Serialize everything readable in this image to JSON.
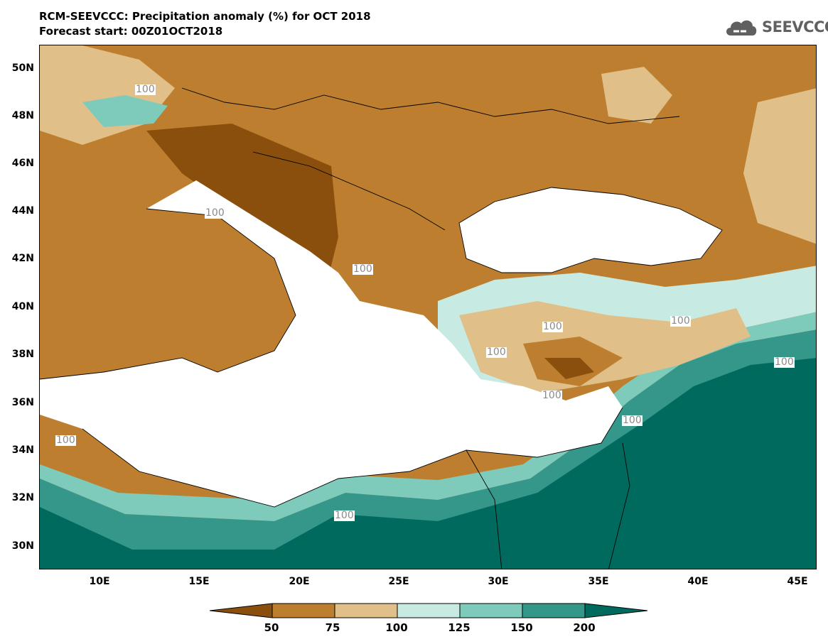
{
  "header": {
    "title": "RCM-SEEVCCC: Precipitation anomaly (%) for OCT 2018",
    "subtitle": "Forecast start: 00Z01OCT2018",
    "logo_text": "SEEVCCC"
  },
  "map": {
    "lat_labels": [
      "50N",
      "48N",
      "46N",
      "44N",
      "42N",
      "40N",
      "38N",
      "36N",
      "34N",
      "32N",
      "30N"
    ],
    "lon_labels": [
      "10E",
      "15E",
      "20E",
      "25E",
      "30E",
      "35E",
      "40E",
      "45E"
    ],
    "lat_range": [
      29,
      51
    ],
    "lon_range": [
      7,
      46
    ],
    "contour_labels": [
      "100",
      "100",
      "100",
      "100",
      "100",
      "100",
      "100",
      "100",
      "100",
      "100",
      "100"
    ]
  },
  "colorbar": {
    "levels": [
      "50",
      "75",
      "100",
      "125",
      "150",
      "200"
    ],
    "colors": [
      "#8a4f0d",
      "#bd7f2f",
      "#e0c088",
      "#c7ebe3",
      "#7ecbbb",
      "#35968a",
      "#006a5e"
    ],
    "extend": "both"
  }
}
